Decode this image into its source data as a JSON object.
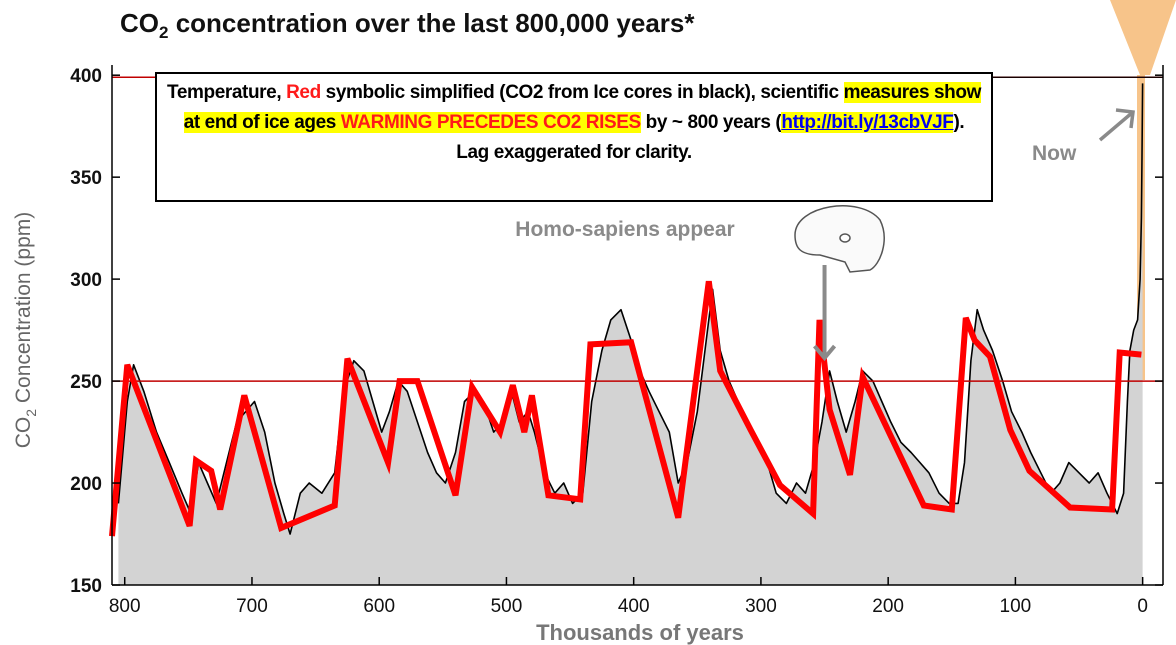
{
  "chart_data": {
    "type": "line",
    "title_parts": [
      "CO",
      "2",
      " concentration over the last 800,000 years*"
    ],
    "y_label_parts": [
      "CO",
      "2",
      " Concentration (ppm)"
    ],
    "x_label": "Thousands of years",
    "xlim": [
      810,
      -16
    ],
    "ylim": [
      150,
      405
    ],
    "xticks": [
      800,
      700,
      600,
      500,
      400,
      300,
      200,
      100,
      0
    ],
    "yticks": [
      150,
      200,
      250,
      300,
      350,
      400
    ],
    "reference_lines": [
      250,
      399
    ],
    "reference_color": "#c00000",
    "annotations": [
      {
        "text": "Homo-sapiens appear",
        "x": 250,
        "y": 276
      },
      {
        "text": "Now",
        "x": 45,
        "y": 365
      }
    ],
    "box_text": [
      "Temperature, ",
      "Red",
      " symbolic simplified (CO2 from Ice cores in black), scientific ",
      "measures show at end of ice ages ",
      "WARMING PRECEDES CO2 RISES",
      " by ~ 800 years (",
      "http://bit.ly/13cbVJF",
      "). Lag exaggerated for clarity."
    ],
    "series": [
      {
        "color": "#000000",
        "fill": "#d3d3d3",
        "x": [
          805,
          798,
          793,
          785,
          775,
          765,
          755,
          748,
          742,
          735,
          728,
          720,
          712,
          705,
          698,
          690,
          682,
          675,
          670,
          662,
          655,
          645,
          635,
          628,
          620,
          612,
          605,
          598,
          592,
          585,
          578,
          570,
          562,
          555,
          548,
          540,
          533,
          525,
          518,
          510,
          503,
          496,
          490,
          483,
          478,
          470,
          462,
          455,
          448,
          440,
          433,
          425,
          418,
          410,
          402,
          395,
          388,
          380,
          372,
          365,
          358,
          350,
          345,
          338,
          332,
          325,
          318,
          310,
          302,
          295,
          288,
          280,
          272,
          265,
          258,
          252,
          246,
          240,
          233,
          226,
          220,
          212,
          205,
          198,
          190,
          182,
          175,
          168,
          160,
          152,
          145,
          140,
          135,
          130,
          125,
          118,
          110,
          103,
          95,
          88,
          80,
          72,
          65,
          58,
          50,
          42,
          35,
          28,
          20,
          15,
          12,
          10,
          7,
          4,
          2,
          1,
          0.5,
          0
        ],
        "values": [
          190,
          240,
          258,
          245,
          225,
          210,
          195,
          185,
          210,
          200,
          190,
          210,
          230,
          235,
          240,
          225,
          200,
          185,
          175,
          195,
          200,
          195,
          205,
          245,
          260,
          255,
          240,
          225,
          235,
          250,
          245,
          230,
          215,
          205,
          200,
          215,
          240,
          245,
          240,
          225,
          230,
          245,
          230,
          235,
          225,
          205,
          195,
          200,
          190,
          195,
          240,
          265,
          280,
          285,
          270,
          255,
          245,
          235,
          225,
          200,
          210,
          235,
          260,
          295,
          265,
          250,
          240,
          230,
          220,
          210,
          195,
          190,
          200,
          195,
          210,
          230,
          255,
          240,
          225,
          240,
          255,
          250,
          240,
          230,
          220,
          215,
          210,
          205,
          195,
          190,
          190,
          210,
          260,
          285,
          275,
          265,
          250,
          235,
          225,
          215,
          205,
          195,
          200,
          210,
          205,
          200,
          205,
          195,
          185,
          195,
          240,
          265,
          275,
          280,
          300,
          330,
          360,
          396
        ]
      },
      {
        "color": "#ff0000",
        "x": [
          810,
          798,
          749,
          744,
          732,
          725,
          706,
          677,
          635,
          625,
          593,
          584,
          570,
          540,
          527,
          505,
          495,
          486,
          480,
          467,
          442,
          434,
          402,
          365,
          341,
          332,
          308,
          285,
          259,
          254,
          246,
          230,
          220,
          172,
          150,
          139,
          132,
          120,
          104,
          89,
          57,
          24,
          18,
          1
        ],
        "values": [
          174,
          258,
          179,
          211,
          206,
          187,
          243,
          178,
          189,
          261,
          210,
          250,
          250,
          194,
          247,
          225,
          248,
          225,
          243,
          194,
          192,
          268,
          269,
          183,
          299,
          255,
          226,
          199,
          185,
          280,
          236,
          204,
          252,
          189,
          187,
          281,
          270,
          262,
          226,
          206,
          188,
          187,
          264,
          263
        ]
      }
    ]
  }
}
